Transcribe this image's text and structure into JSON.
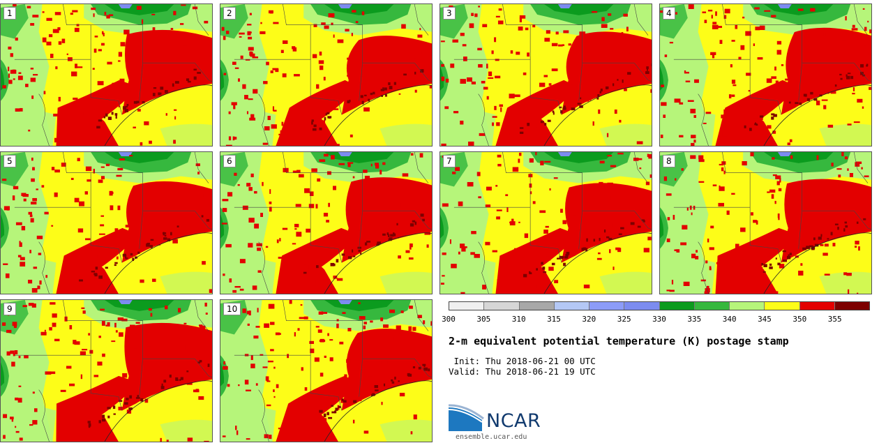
{
  "panels": [
    {
      "label": "1"
    },
    {
      "label": "2"
    },
    {
      "label": "3"
    },
    {
      "label": "4"
    },
    {
      "label": "5"
    },
    {
      "label": "6"
    },
    {
      "label": "7"
    },
    {
      "label": "8"
    },
    {
      "label": "9"
    },
    {
      "label": "10"
    }
  ],
  "colorbar": {
    "ticks": [
      "300",
      "305",
      "310",
      "315",
      "320",
      "325",
      "330",
      "335",
      "340",
      "345",
      "350",
      "355"
    ],
    "colors": [
      "#f0f0f0",
      "#d6d6d6",
      "#a8a8a8",
      "#b4c8f5",
      "#8c9cf8",
      "#7c8cf0",
      "#0b9b1e",
      "#36b83e",
      "#b6f57a",
      "#fdfd18",
      "#e30000",
      "#7d0000"
    ]
  },
  "title": "2-m equivalent potential temperature (K) postage stamp",
  "init_line": " Init: Thu 2018-06-21 00 UTC",
  "valid_line": "Valid: Thu 2018-06-21 19 UTC",
  "logo": {
    "name": "NCAR",
    "url": "ensemble.ucar.edu",
    "colors": {
      "wave": "#1d78c0",
      "text": "#113a6e"
    }
  },
  "map_colors": {
    "yellow": "#fdfd18",
    "light_green": "#b6f57a",
    "green": "#36b83e",
    "dark_green": "#0b9b1e",
    "red": "#e30000",
    "dark_red": "#7d0000",
    "blue": "#7c8cf0"
  }
}
